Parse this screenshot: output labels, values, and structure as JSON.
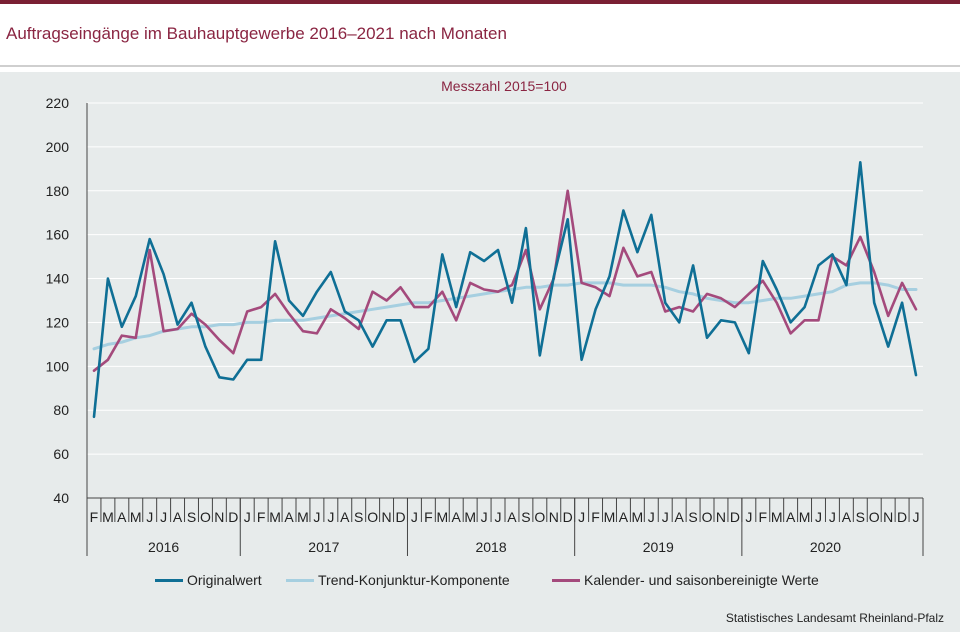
{
  "header": {
    "title": "Auftragseingänge im Bauhauptgewerbe 2016–2021 nach Monaten"
  },
  "footer": {
    "source": "Statistisches Landesamt Rheinland-Pfalz"
  },
  "colors": {
    "accent": "#7a1f33",
    "title": "#8a2542",
    "panel_background": "#e7ebeb",
    "original": "#0f6f95",
    "trend": "#a6cfe0",
    "adjusted": "#a44a7c"
  },
  "chart_data": {
    "type": "line",
    "subtitle": "Messzahl 2015=100",
    "ylim": [
      40,
      220
    ],
    "yticks": [
      40,
      60,
      80,
      100,
      120,
      140,
      160,
      180,
      200,
      220
    ],
    "grid": true,
    "legend_position": "bottom",
    "months": [
      "F",
      "M",
      "A",
      "M",
      "J",
      "J",
      "A",
      "S",
      "O",
      "N",
      "D",
      "J",
      "F",
      "M",
      "A",
      "M",
      "J",
      "J",
      "A",
      "S",
      "O",
      "N",
      "D",
      "J",
      "F",
      "M",
      "A",
      "M",
      "J",
      "J",
      "A",
      "S",
      "O",
      "N",
      "D",
      "J",
      "F",
      "M",
      "A",
      "M",
      "J",
      "J",
      "A",
      "S",
      "O",
      "N",
      "D",
      "J",
      "F",
      "M",
      "A",
      "M",
      "J",
      "J",
      "A",
      "S",
      "O",
      "N",
      "D",
      "J"
    ],
    "year_labels": [
      {
        "label": "2016",
        "first": 0,
        "last": 10
      },
      {
        "label": "2017",
        "first": 11,
        "last": 22
      },
      {
        "label": "2018",
        "first": 23,
        "last": 34
      },
      {
        "label": "2019",
        "first": 35,
        "last": 46
      },
      {
        "label": "2020",
        "first": 47,
        "last": 58
      }
    ],
    "series": [
      {
        "name": "Originalwert",
        "color": "#0f6f95",
        "values": [
          77,
          140,
          118,
          132,
          158,
          142,
          119,
          129,
          109,
          95,
          94,
          103,
          103,
          157,
          130,
          123,
          134,
          143,
          125,
          121,
          109,
          121,
          121,
          102,
          108,
          151,
          127,
          152,
          148,
          153,
          129,
          163,
          105,
          141,
          167,
          103,
          126,
          141,
          171,
          152,
          169,
          129,
          120,
          146,
          113,
          121,
          120,
          106,
          148,
          135,
          120,
          127,
          146,
          151,
          137,
          193,
          129,
          109,
          129,
          96
        ]
      },
      {
        "name": "Trend-Konjunktur-Komponente",
        "color": "#a6cfe0",
        "values": [
          108,
          110,
          111,
          113,
          114,
          116,
          117,
          118,
          118,
          119,
          119,
          120,
          120,
          121,
          121,
          121,
          122,
          123,
          124,
          125,
          126,
          127,
          128,
          129,
          129,
          130,
          131,
          132,
          133,
          134,
          135,
          136,
          136,
          137,
          137,
          138,
          138,
          138,
          137,
          137,
          137,
          136,
          134,
          133,
          131,
          130,
          129,
          129,
          130,
          131,
          131,
          132,
          133,
          134,
          137,
          138,
          138,
          137,
          135,
          135
        ]
      },
      {
        "name": "Kalender- und saisonbereinigte Werte",
        "color": "#a44a7c",
        "values": [
          98,
          103,
          114,
          113,
          153,
          116,
          117,
          124,
          119,
          112,
          106,
          125,
          127,
          133,
          124,
          116,
          115,
          126,
          122,
          117,
          134,
          130,
          136,
          127,
          127,
          134,
          121,
          138,
          135,
          134,
          137,
          153,
          126,
          140,
          180,
          138,
          136,
          132,
          154,
          141,
          143,
          125,
          127,
          125,
          133,
          131,
          127,
          133,
          139,
          129,
          115,
          121,
          121,
          150,
          146,
          159,
          143,
          123,
          138,
          126
        ]
      }
    ]
  }
}
